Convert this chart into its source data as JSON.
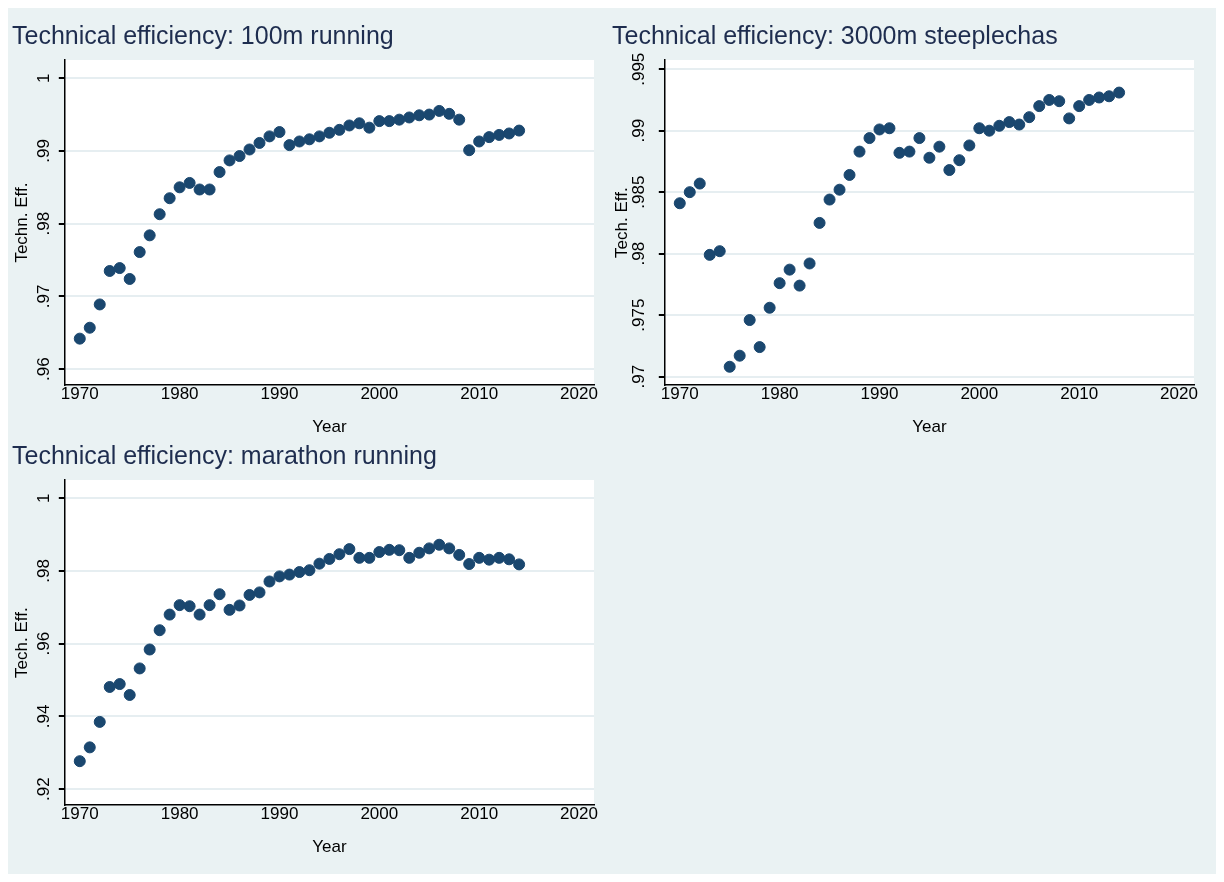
{
  "chart_data": [
    {
      "type": "scatter",
      "title": "Technical efficiency: 100m running",
      "xlabel": "Year",
      "ylabel": "Techn. Eff.",
      "color": "#1a476f",
      "marker": "circle",
      "grid": "y",
      "xlim": [
        1968.5,
        2021.5
      ],
      "xticks": [
        1970,
        1980,
        1990,
        2000,
        2010,
        2020
      ],
      "ylim": [
        0.9578,
        1.0025
      ],
      "yticks": [
        {
          "value": 0.96,
          "label": ".96"
        },
        {
          "value": 0.97,
          "label": ".97"
        },
        {
          "value": 0.98,
          "label": ".98"
        },
        {
          "value": 0.99,
          "label": ".99"
        },
        1
      ],
      "x": [
        1970,
        1971,
        1972,
        1973,
        1974,
        1975,
        1976,
        1977,
        1978,
        1979,
        1980,
        1981,
        1982,
        1983,
        1984,
        1985,
        1986,
        1987,
        1988,
        1989,
        1990,
        1991,
        1992,
        1993,
        1994,
        1995,
        1996,
        1997,
        1998,
        1999,
        2000,
        2001,
        2002,
        2003,
        2004,
        2005,
        2006,
        2007,
        2008,
        2009,
        2010,
        2011,
        2012,
        2013,
        2014
      ],
      "values": [
        0.9642,
        0.9657,
        0.9689,
        0.9735,
        0.9739,
        0.9724,
        0.9761,
        0.9784,
        0.9813,
        0.9835,
        0.985,
        0.9856,
        0.9847,
        0.9847,
        0.9871,
        0.9887,
        0.9893,
        0.9902,
        0.9911,
        0.992,
        0.9926,
        0.9908,
        0.9913,
        0.9916,
        0.992,
        0.9925,
        0.9929,
        0.9935,
        0.9938,
        0.9932,
        0.9941,
        0.9941,
        0.9943,
        0.9946,
        0.9949,
        0.995,
        0.9955,
        0.9951,
        0.9943,
        0.9901,
        0.9913,
        0.9919,
        0.9922,
        0.9924,
        0.9928
      ]
    },
    {
      "type": "scatter",
      "title": "Technical efficiency: 3000m steeplechas",
      "xlabel": "Year",
      "ylabel": "Tech. Eff.",
      "color": "#1a476f",
      "marker": "circle",
      "grid": "y",
      "xlim": [
        1968.5,
        2021.5
      ],
      "xticks": [
        1970,
        1980,
        1990,
        2000,
        2010,
        2020
      ],
      "ylim": [
        0.9693,
        0.99575
      ],
      "yticks": [
        {
          "value": 0.97,
          "label": ".97"
        },
        {
          "value": 0.975,
          "label": ".975"
        },
        {
          "value": 0.98,
          "label": ".98"
        },
        {
          "value": 0.985,
          "label": ".985"
        },
        {
          "value": 0.99,
          "label": ".99"
        },
        {
          "value": 0.995,
          "label": ".995"
        }
      ],
      "x": [
        1970,
        1971,
        1972,
        1973,
        1974,
        1975,
        1976,
        1977,
        1978,
        1979,
        1980,
        1981,
        1982,
        1983,
        1984,
        1985,
        1986,
        1987,
        1988,
        1989,
        1990,
        1991,
        1992,
        1993,
        1994,
        1995,
        1996,
        1997,
        1998,
        1999,
        2000,
        2001,
        2002,
        2003,
        2004,
        2005,
        2006,
        2007,
        2008,
        2009,
        2010,
        2011,
        2012,
        2013,
        2014
      ],
      "values": [
        0.9841,
        0.985,
        0.9857,
        0.9799,
        0.9802,
        0.9708,
        0.9717,
        0.9746,
        0.9724,
        0.9756,
        0.9776,
        0.9787,
        0.9774,
        0.9792,
        0.9825,
        0.9844,
        0.9852,
        0.9864,
        0.9883,
        0.9894,
        0.9901,
        0.9902,
        0.9882,
        0.9883,
        0.9894,
        0.9878,
        0.9887,
        0.9868,
        0.9876,
        0.9888,
        0.9902,
        0.99,
        0.9904,
        0.9907,
        0.9905,
        0.9911,
        0.992,
        0.9925,
        0.9924,
        0.991,
        0.992,
        0.9925,
        0.9927,
        0.9928,
        0.9931
      ]
    },
    {
      "type": "scatter",
      "title": "Technical efficiency: marathon running",
      "xlabel": "Year",
      "ylabel": "Tech. Eff.",
      "color": "#1a476f",
      "marker": "circle",
      "grid": "y",
      "xlim": [
        1968.5,
        2021.5
      ],
      "xticks": [
        1970,
        1980,
        1990,
        2000,
        2010,
        2020
      ],
      "ylim": [
        0.9156,
        1.005
      ],
      "yticks": [
        {
          "value": 0.92,
          "label": ".92"
        },
        {
          "value": 0.94,
          "label": ".94"
        },
        {
          "value": 0.96,
          "label": ".96"
        },
        {
          "value": 0.98,
          "label": ".98"
        },
        1
      ],
      "x": [
        1970,
        1971,
        1972,
        1973,
        1974,
        1975,
        1976,
        1977,
        1978,
        1979,
        1980,
        1981,
        1982,
        1983,
        1984,
        1985,
        1986,
        1987,
        1988,
        1989,
        1990,
        1991,
        1992,
        1993,
        1994,
        1995,
        1996,
        1997,
        1998,
        1999,
        2000,
        2001,
        2002,
        2003,
        2004,
        2005,
        2006,
        2007,
        2008,
        2009,
        2010,
        2011,
        2012,
        2013,
        2014
      ],
      "values": [
        0.9277,
        0.9315,
        0.9385,
        0.9481,
        0.9489,
        0.9459,
        0.9532,
        0.9584,
        0.9637,
        0.968,
        0.9706,
        0.9703,
        0.968,
        0.9706,
        0.9736,
        0.9693,
        0.9705,
        0.9734,
        0.9741,
        0.9771,
        0.9785,
        0.979,
        0.9797,
        0.9802,
        0.982,
        0.9833,
        0.9846,
        0.986,
        0.9836,
        0.9836,
        0.9852,
        0.9858,
        0.9857,
        0.9836,
        0.985,
        0.9862,
        0.9872,
        0.9862,
        0.9844,
        0.9819,
        0.9836,
        0.9831,
        0.9836,
        0.9832,
        0.9818
      ]
    }
  ]
}
